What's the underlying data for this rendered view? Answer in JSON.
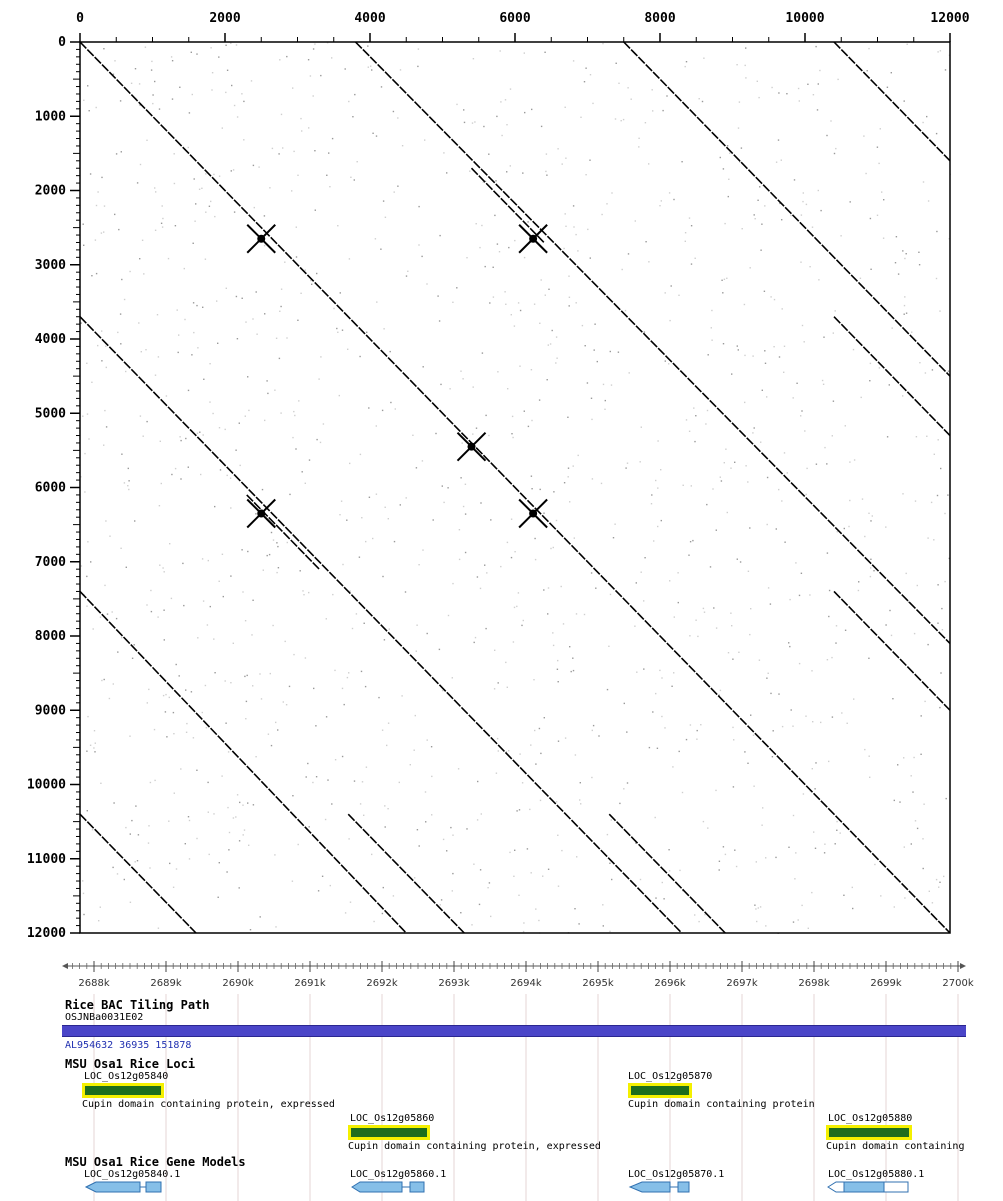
{
  "chart_data": {
    "type": "scatter",
    "title": "",
    "xlabel": "",
    "ylabel": "",
    "x_ticks": [
      "0",
      "2000",
      "4000",
      "6000",
      "8000",
      "10000",
      "12000"
    ],
    "y_ticks": [
      "0",
      "1000",
      "2000",
      "3000",
      "4000",
      "5000",
      "6000",
      "7000",
      "8000",
      "9000",
      "10000",
      "11000",
      "12000"
    ],
    "xlim": [
      0,
      12000
    ],
    "ylim": [
      0,
      12000
    ],
    "grid": false,
    "series": [
      {
        "segments": [
          [
            0,
            0,
            12000,
            12000
          ],
          [
            3800,
            0,
            12000,
            8100
          ],
          [
            7500,
            0,
            12000,
            4500
          ],
          [
            10400,
            0,
            12000,
            1600
          ],
          [
            0,
            3700,
            8300,
            12000
          ],
          [
            0,
            7400,
            4500,
            12000
          ],
          [
            0,
            10400,
            1600,
            12000
          ],
          [
            10400,
            3700,
            12000,
            5300
          ],
          [
            10400,
            7400,
            12000,
            9000
          ],
          [
            7300,
            10400,
            8900,
            12000
          ],
          [
            3700,
            10400,
            5300,
            12000
          ],
          [
            5400,
            1700,
            6400,
            2700
          ],
          [
            2300,
            6100,
            3300,
            7100
          ]
        ]
      }
    ],
    "hotspots": [
      [
        2500,
        2650
      ],
      [
        6250,
        2650
      ],
      [
        2500,
        6350
      ],
      [
        6250,
        6350
      ],
      [
        5400,
        5450
      ]
    ]
  },
  "browser": {
    "ruler": {
      "labels": [
        "2688k",
        "2689k",
        "2690k",
        "2691k",
        "2692k",
        "2693k",
        "2694k",
        "2695k",
        "2696k",
        "2697k",
        "2698k",
        "2699k",
        "2700k"
      ]
    },
    "bac_track": {
      "title": "Rice BAC Tiling Path",
      "clone": "OSJNBa0031E02",
      "accession": "AL954632 36935 151878",
      "bar_color": "#4a45c8"
    },
    "loci_track": {
      "title": "MSU Osa1 Rice Loci",
      "loci": [
        {
          "name": "LOC_Os12g05840",
          "desc": "Cupin domain containing protein, expressed"
        },
        {
          "name": "LOC_Os12g05870",
          "desc": "Cupin domain containing protein"
        },
        {
          "name": "LOC_Os12g05860",
          "desc": "Cupin domain containing protein, expressed"
        },
        {
          "name": "LOC_Os12g05880",
          "desc": "Cupin domain containing"
        }
      ],
      "box_color": "#1d6d1d",
      "highlight_color": "#f4f000"
    },
    "gene_models_track": {
      "title": "MSU Osa1 Rice Gene Models",
      "models": [
        {
          "name": "LOC_Os12g05840.1"
        },
        {
          "name": "LOC_Os12g05860.1"
        },
        {
          "name": "LOC_Os12g05870.1"
        },
        {
          "name": "LOC_Os12g05880.1"
        }
      ],
      "exon_color": "#86bfe8"
    }
  }
}
